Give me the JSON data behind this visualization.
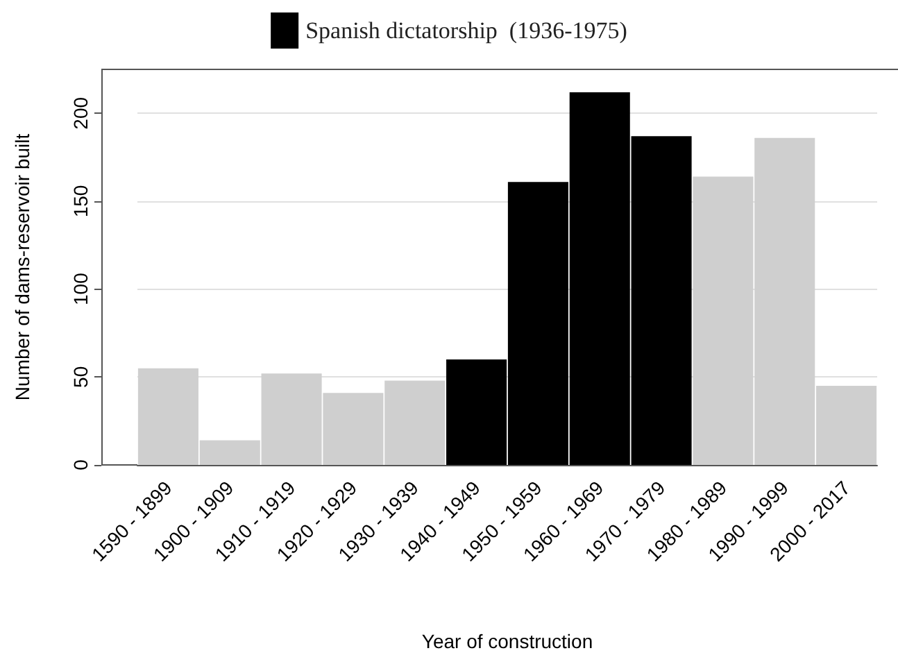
{
  "chart_data": {
    "type": "bar",
    "stacked": true,
    "categories": [
      "1590 - 1899",
      "1900 - 1909",
      "1910 - 1919",
      "1920 - 1929",
      "1930 - 1939",
      "1940 - 1949",
      "1950 - 1959",
      "1960 - 1969",
      "1970 - 1979",
      "1980 - 1989",
      "1990 - 1999",
      "2000 - 2017"
    ],
    "series": [
      {
        "color": "#cfcfcf",
        "values": [
          55,
          14,
          52,
          41,
          48,
          null,
          null,
          null,
          null,
          164,
          186,
          45
        ]
      },
      {
        "name": "Spanish dictatorship  (1936-1975)",
        "color": "#000000",
        "values": [
          null,
          null,
          null,
          null,
          null,
          60,
          161,
          212,
          187,
          null,
          null,
          null
        ]
      }
    ],
    "xlabel": "Year of construction",
    "ylabel": "Number of dams-reservoir built",
    "ylim": [
      0,
      225
    ],
    "yticks": [
      0,
      50,
      100,
      150,
      200
    ],
    "grid": "y",
    "legend": "top"
  }
}
